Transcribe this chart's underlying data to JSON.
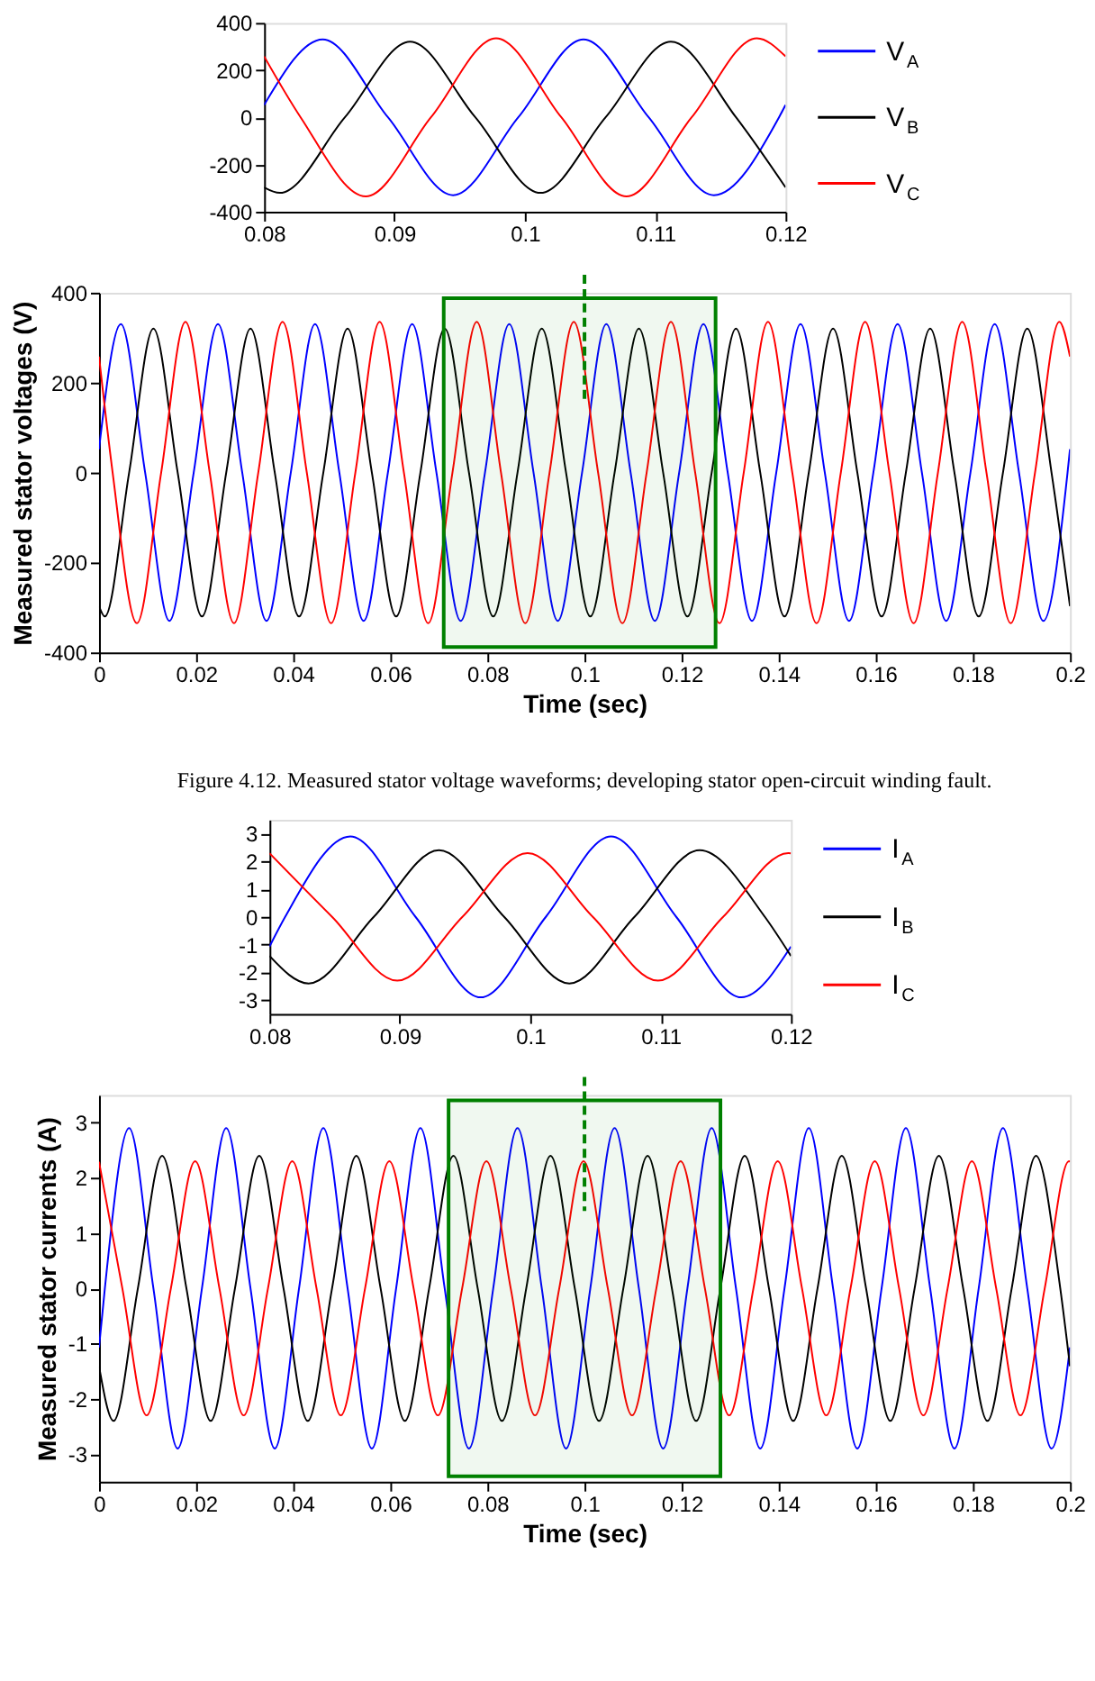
{
  "chart_data": [
    {
      "type": "line",
      "xlim": [
        0.08,
        0.12
      ],
      "xticks": [
        0.08,
        0.09,
        0.1,
        0.11,
        0.12
      ],
      "ylim": [
        -400,
        400
      ],
      "yticks": [
        -400,
        -200,
        0,
        200,
        400
      ],
      "grid": false,
      "legend": "right",
      "marker": "none",
      "line_style": "solid",
      "series": [
        {
          "name": "V$_{A}$",
          "color": "#0000ff",
          "x": [
            0.08,
            0.0845,
            0.0895,
            0.0945,
            0.0995,
            0.1045,
            0.1095,
            0.1145,
            0.1195,
            0.12
          ],
          "values": [
            52,
            330,
            0,
            -330,
            0,
            330,
            0,
            -330,
            0,
            52
          ]
        },
        {
          "name": "V$_{B}$",
          "color": "#000000",
          "x": [
            0.08,
            0.0812,
            0.0862,
            0.0912,
            0.0962,
            0.1012,
            0.1062,
            0.1112,
            0.1162,
            0.12
          ],
          "values": [
            -297,
            -320,
            0,
            320,
            0,
            -320,
            0,
            320,
            0,
            -297
          ]
        },
        {
          "name": "V$_{C}$",
          "color": "#ff0000",
          "x": [
            0.08,
            0.0828,
            0.0878,
            0.0928,
            0.0978,
            0.1028,
            0.1078,
            0.1128,
            0.1178,
            0.12
          ],
          "values": [
            258,
            0,
            -335,
            0,
            335,
            0,
            -335,
            0,
            335,
            258
          ]
        }
      ]
    },
    {
      "type": "line",
      "xlabel": "Time (sec)",
      "ylabel": "Measured stator voltages (V)",
      "xlim": [
        0,
        0.2
      ],
      "xticks": [
        0,
        0.02,
        0.04,
        0.06,
        0.08,
        0.1,
        0.12,
        0.14,
        0.16,
        0.18,
        0.2
      ],
      "ylim": [
        -400,
        400
      ],
      "yticks": [
        -400,
        -200,
        0,
        200,
        400
      ],
      "grid": false,
      "legend": false,
      "marker": "none",
      "line_style": "solid",
      "annotations": [
        "Figure 4.12.  Measured stator voltage waveforms; developing stator open-circuit winding fault."
      ],
      "bands": [
        {
          "axis": "x",
          "from": 0.071,
          "to": 0.127,
          "color": "#008000"
        }
      ],
      "ref_lines": [
        {
          "axis": "x",
          "value": 0.1,
          "color": "#008000",
          "line_style": "dashed"
        }
      ],
      "series": [
        {
          "color": "#0000ff",
          "x": [
            0,
            0.0045,
            0.0095,
            0.0145,
            0.0195,
            0.0245,
            0.0295,
            0.0345,
            0.0395,
            0.0445,
            0.0495,
            0.0545,
            0.0595,
            0.0645,
            0.0695,
            0.0745,
            0.0795,
            0.0845,
            0.0895,
            0.0945,
            0.0995,
            0.1045,
            0.1095,
            0.1145,
            0.1195,
            0.1245,
            0.1295,
            0.1345,
            0.1395,
            0.1445,
            0.1495,
            0.1545,
            0.1595,
            0.1645,
            0.1695,
            0.1745,
            0.1795,
            0.1845,
            0.1895,
            0.1945,
            0.1995,
            0.2
          ],
          "values": [
            52,
            330,
            0,
            -330,
            0,
            330,
            0,
            -330,
            0,
            330,
            0,
            -330,
            0,
            330,
            0,
            -330,
            0,
            330,
            0,
            -330,
            0,
            330,
            0,
            -330,
            0,
            330,
            0,
            -330,
            0,
            330,
            0,
            -330,
            0,
            330,
            0,
            -330,
            0,
            330,
            0,
            -330,
            0,
            52
          ]
        },
        {
          "color": "#000000",
          "x": [
            0,
            0.0012,
            0.0062,
            0.0112,
            0.0162,
            0.0212,
            0.0262,
            0.0312,
            0.0362,
            0.0412,
            0.0462,
            0.0512,
            0.0562,
            0.0612,
            0.0662,
            0.0712,
            0.0762,
            0.0812,
            0.0862,
            0.0912,
            0.0962,
            0.1012,
            0.1062,
            0.1112,
            0.1162,
            0.1212,
            0.1262,
            0.1312,
            0.1362,
            0.1412,
            0.1462,
            0.1512,
            0.1562,
            0.1612,
            0.1662,
            0.1712,
            0.1762,
            0.1812,
            0.1862,
            0.1912,
            0.1962,
            0.2
          ],
          "values": [
            -297,
            -320,
            0,
            320,
            0,
            -320,
            0,
            320,
            0,
            -320,
            0,
            320,
            0,
            -320,
            0,
            320,
            0,
            -320,
            0,
            320,
            0,
            -320,
            0,
            320,
            0,
            -320,
            0,
            320,
            0,
            -320,
            0,
            320,
            0,
            -320,
            0,
            320,
            0,
            -320,
            0,
            320,
            0,
            -297
          ]
        },
        {
          "color": "#ff0000",
          "x": [
            0,
            0.0028,
            0.0078,
            0.0128,
            0.0178,
            0.0228,
            0.0278,
            0.0328,
            0.0378,
            0.0428,
            0.0478,
            0.0528,
            0.0578,
            0.0628,
            0.0678,
            0.0728,
            0.0778,
            0.0828,
            0.0878,
            0.0928,
            0.0978,
            0.1028,
            0.1078,
            0.1128,
            0.1178,
            0.1228,
            0.1278,
            0.1328,
            0.1378,
            0.1428,
            0.1478,
            0.1528,
            0.1578,
            0.1628,
            0.1678,
            0.1728,
            0.1778,
            0.1828,
            0.1878,
            0.1928,
            0.1978,
            0.2
          ],
          "values": [
            258,
            0,
            -335,
            0,
            335,
            0,
            -335,
            0,
            335,
            0,
            -335,
            0,
            335,
            0,
            -335,
            0,
            335,
            0,
            -335,
            0,
            335,
            0,
            -335,
            0,
            335,
            0,
            -335,
            0,
            335,
            0,
            -335,
            0,
            335,
            0,
            -335,
            0,
            335,
            0,
            -335,
            0,
            335,
            258
          ]
        }
      ]
    },
    {
      "type": "line",
      "xlim": [
        0.08,
        0.12
      ],
      "xticks": [
        0.08,
        0.09,
        0.1,
        0.11,
        0.12
      ],
      "ylim": [
        -3.5,
        3.5
      ],
      "yticks": [
        -3,
        -2,
        -1,
        0,
        1,
        2,
        3
      ],
      "grid": false,
      "legend": "right",
      "marker": "none",
      "line_style": "solid",
      "series": [
        {
          "name": "I$_{A}$",
          "color": "#0000ff",
          "x": [
            0.08,
            0.0812,
            0.0862,
            0.0912,
            0.0962,
            0.1012,
            0.1062,
            0.1112,
            0.1162,
            0.12
          ],
          "values": [
            -1.07,
            0,
            2.9,
            0,
            -2.9,
            0,
            2.9,
            0,
            -2.9,
            -1.07
          ]
        },
        {
          "name": "I$_{B}$",
          "color": "#000000",
          "x": [
            0.08,
            0.083,
            0.088,
            0.093,
            0.098,
            0.103,
            0.108,
            0.113,
            0.118,
            0.12
          ],
          "values": [
            -1.41,
            -2.4,
            0,
            2.4,
            0,
            -2.4,
            0,
            2.4,
            0,
            -1.41
          ]
        },
        {
          "name": "I$_{C}$",
          "color": "#ff0000",
          "x": [
            0.08,
            0.0848,
            0.0898,
            0.0948,
            0.0998,
            0.1048,
            0.1098,
            0.1148,
            0.1198,
            0.12
          ],
          "values": [
            2.29,
            0,
            -2.3,
            0,
            2.3,
            0,
            -2.3,
            0,
            2.3,
            2.29
          ]
        }
      ]
    },
    {
      "type": "line",
      "xlabel": "Time (sec)",
      "ylabel": "Measured stator currents (A)",
      "xlim": [
        0,
        0.2
      ],
      "xticks": [
        0,
        0.02,
        0.04,
        0.06,
        0.08,
        0.1,
        0.12,
        0.14,
        0.16,
        0.18,
        0.2
      ],
      "ylim": [
        -3.5,
        3.5
      ],
      "yticks": [
        -3,
        -2,
        -1,
        0,
        1,
        2,
        3
      ],
      "grid": false,
      "legend": false,
      "marker": "none",
      "line_style": "solid",
      "bands": [
        {
          "axis": "x",
          "from": 0.072,
          "to": 0.128,
          "color": "#008000"
        }
      ],
      "ref_lines": [
        {
          "axis": "x",
          "value": 0.1,
          "color": "#008000",
          "line_style": "dashed"
        }
      ],
      "series": [
        {
          "color": "#0000ff",
          "x": [
            0,
            0.0012,
            0.0062,
            0.0112,
            0.0162,
            0.0212,
            0.0262,
            0.0312,
            0.0362,
            0.0412,
            0.0462,
            0.0512,
            0.0562,
            0.0612,
            0.0662,
            0.0712,
            0.0762,
            0.0812,
            0.0862,
            0.0912,
            0.0962,
            0.1012,
            0.1062,
            0.1112,
            0.1162,
            0.1212,
            0.1262,
            0.1312,
            0.1362,
            0.1412,
            0.1462,
            0.1512,
            0.1562,
            0.1612,
            0.1662,
            0.1712,
            0.1762,
            0.1812,
            0.1862,
            0.1912,
            0.1962,
            0.2
          ],
          "values": [
            -1.07,
            0,
            2.9,
            0,
            -2.9,
            0,
            2.9,
            0,
            -2.9,
            0,
            2.9,
            0,
            -2.9,
            0,
            2.9,
            0,
            -2.9,
            0,
            2.9,
            0,
            -2.9,
            0,
            2.9,
            0,
            -2.9,
            0,
            2.9,
            0,
            -2.9,
            0,
            2.9,
            0,
            -2.9,
            0,
            2.9,
            0,
            -2.9,
            0,
            2.9,
            0,
            -2.9,
            -1.07
          ]
        },
        {
          "color": "#000000",
          "x": [
            0,
            0.003,
            0.008,
            0.013,
            0.018,
            0.023,
            0.028,
            0.033,
            0.038,
            0.043,
            0.048,
            0.053,
            0.058,
            0.063,
            0.068,
            0.073,
            0.078,
            0.083,
            0.088,
            0.093,
            0.098,
            0.103,
            0.108,
            0.113,
            0.118,
            0.123,
            0.128,
            0.133,
            0.138,
            0.143,
            0.148,
            0.153,
            0.158,
            0.163,
            0.168,
            0.173,
            0.178,
            0.183,
            0.188,
            0.193,
            0.198,
            0.2
          ],
          "values": [
            -1.41,
            -2.4,
            0,
            2.4,
            0,
            -2.4,
            0,
            2.4,
            0,
            -2.4,
            0,
            2.4,
            0,
            -2.4,
            0,
            2.4,
            0,
            -2.4,
            0,
            2.4,
            0,
            -2.4,
            0,
            2.4,
            0,
            -2.4,
            0,
            2.4,
            0,
            -2.4,
            0,
            2.4,
            0,
            -2.4,
            0,
            2.4,
            0,
            -2.4,
            0,
            2.4,
            0,
            -1.41
          ]
        },
        {
          "color": "#ff0000",
          "x": [
            0,
            0.0048,
            0.0098,
            0.0148,
            0.0198,
            0.0248,
            0.0298,
            0.0348,
            0.0398,
            0.0448,
            0.0498,
            0.0548,
            0.0598,
            0.0648,
            0.0698,
            0.0748,
            0.0798,
            0.0848,
            0.0898,
            0.0948,
            0.0998,
            0.1048,
            0.1098,
            0.1148,
            0.1198,
            0.1248,
            0.1298,
            0.1348,
            0.1398,
            0.1448,
            0.1498,
            0.1548,
            0.1598,
            0.1648,
            0.1698,
            0.1748,
            0.1798,
            0.1848,
            0.1898,
            0.1948,
            0.1998,
            0.2
          ],
          "values": [
            2.29,
            0,
            -2.3,
            0,
            2.3,
            0,
            -2.3,
            0,
            2.3,
            0,
            -2.3,
            0,
            2.3,
            0,
            -2.3,
            0,
            2.3,
            0,
            -2.3,
            0,
            2.3,
            0,
            -2.3,
            0,
            2.3,
            0,
            -2.3,
            0,
            2.3,
            0,
            -2.3,
            0,
            2.3,
            0,
            -2.3,
            0,
            2.3,
            0,
            -2.3,
            0,
            2.3,
            2.29
          ]
        }
      ]
    }
  ]
}
